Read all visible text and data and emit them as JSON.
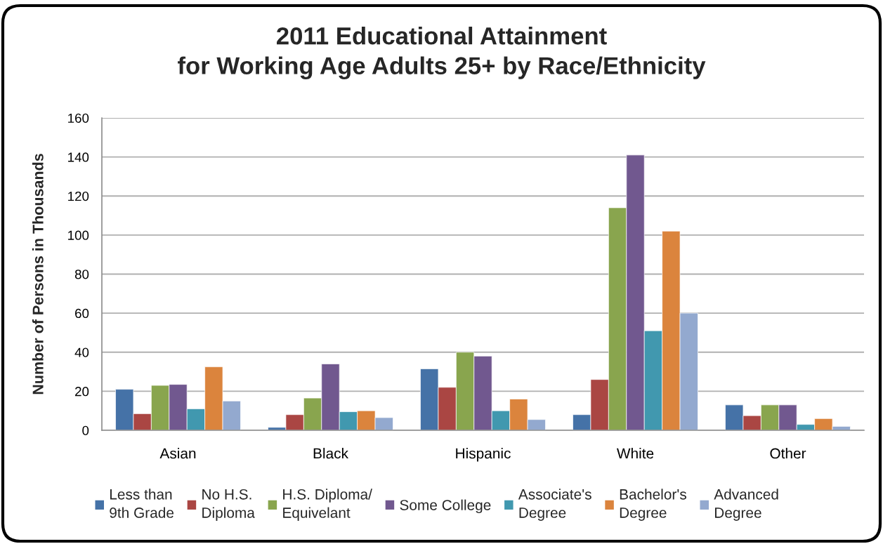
{
  "chart_data": {
    "type": "bar",
    "title": "2011 Educational Attainment\nfor Working Age Adults 25+ by Race/Ethnicity",
    "ylabel": "Number of Persons in Thousands",
    "categories": [
      "Asian",
      "Black",
      "Hispanic",
      "White",
      "Other"
    ],
    "series": [
      {
        "name": "Less than\n9th Grade",
        "color": "#4572a7",
        "values": [
          21,
          1.5,
          31.5,
          8,
          13
        ]
      },
      {
        "name": "No H.S.\nDiploma",
        "color": "#aa4643",
        "values": [
          8.5,
          8,
          22,
          26,
          7.5
        ]
      },
      {
        "name": "H.S. Diploma/\nEquivelant",
        "color": "#89a54e",
        "values": [
          23,
          16.5,
          40,
          114,
          13
        ]
      },
      {
        "name": "Some College",
        "color": "#71588f",
        "values": [
          23.5,
          34,
          38,
          141,
          13
        ]
      },
      {
        "name": "Associate's\nDegree",
        "color": "#4198af",
        "values": [
          11,
          9.5,
          10,
          51,
          3
        ]
      },
      {
        "name": "Bachelor's\nDegree",
        "color": "#db843d",
        "values": [
          32.5,
          10,
          16,
          102,
          6
        ]
      },
      {
        "name": "Advanced\nDegree",
        "color": "#93a9cf",
        "values": [
          15,
          6.5,
          5.5,
          60,
          2
        ]
      }
    ],
    "ylim": [
      0,
      160
    ],
    "yticks": [
      0,
      20,
      40,
      60,
      80,
      100,
      120,
      140,
      160
    ],
    "grid": "y",
    "legend": "bottom"
  }
}
